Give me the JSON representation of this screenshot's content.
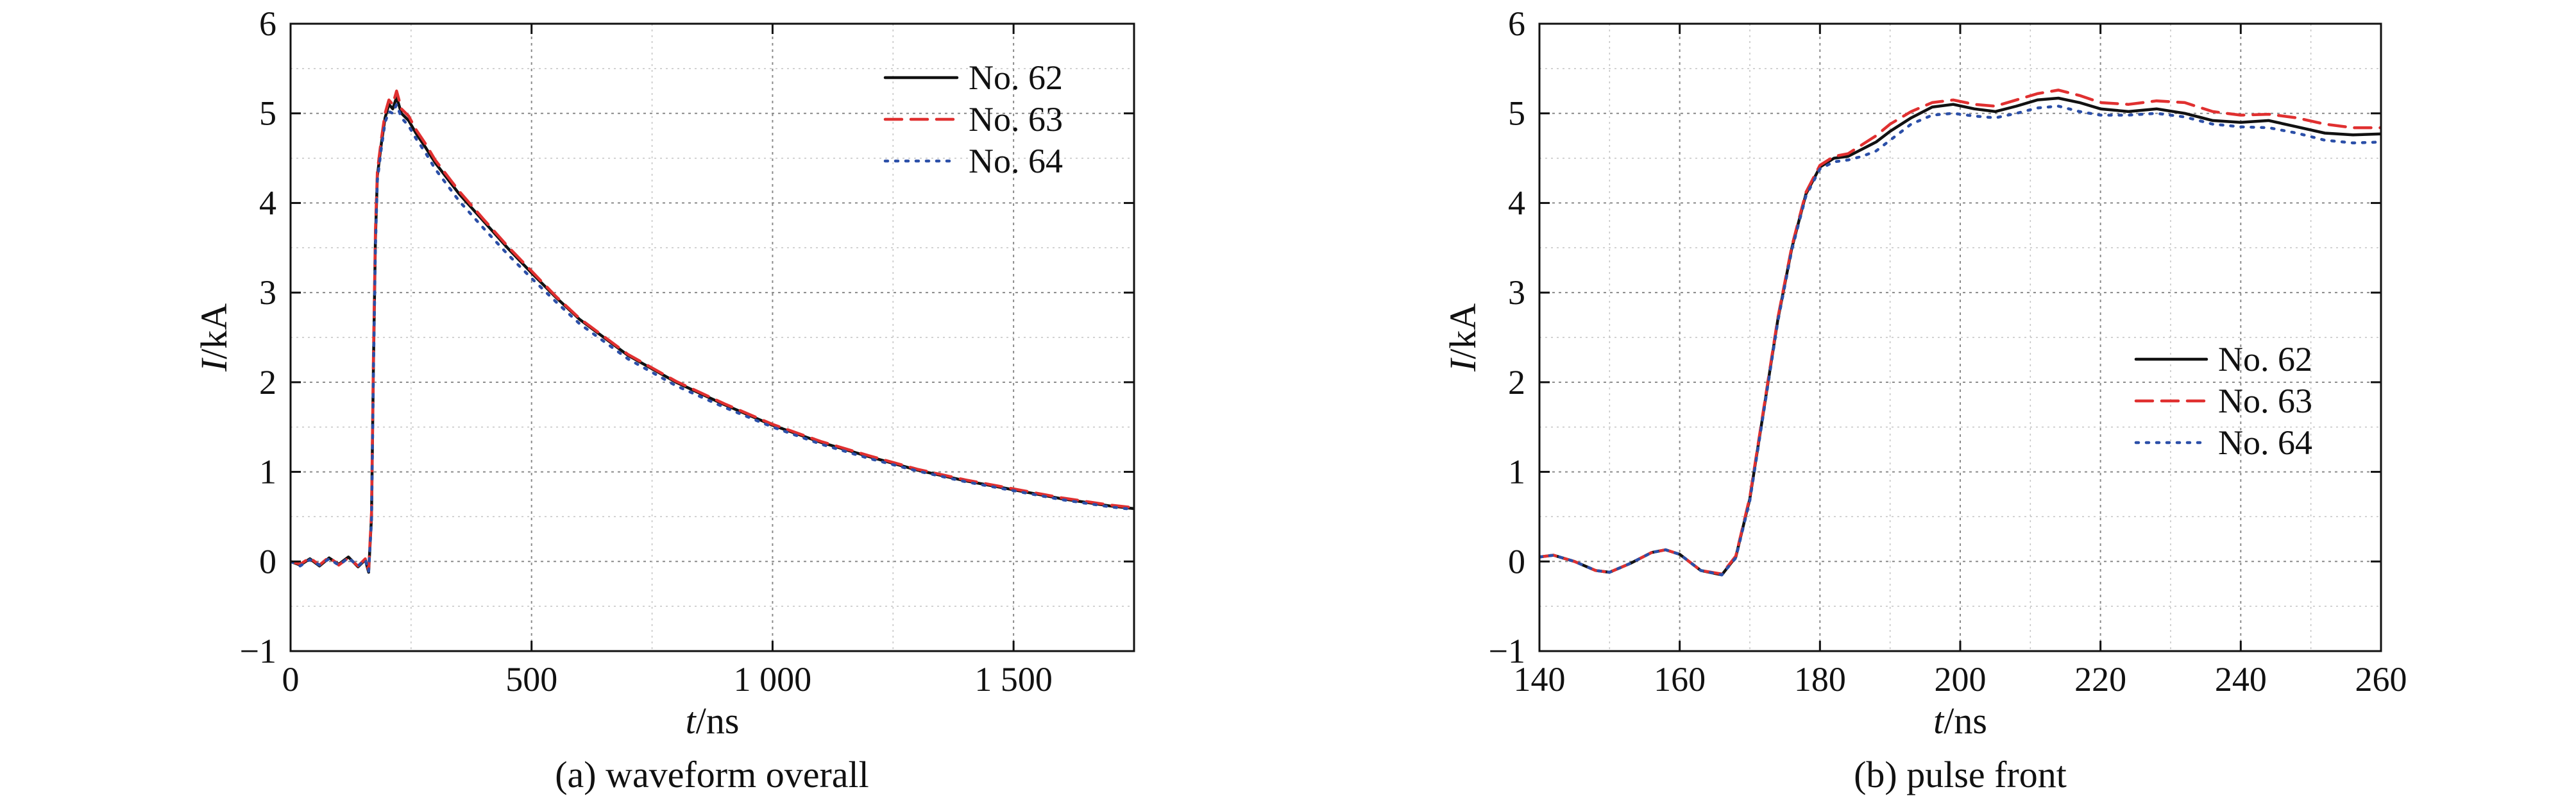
{
  "chart_data": [
    {
      "type": "line",
      "caption": "(a) waveform overall",
      "xlabel_italic": "t",
      "xlabel_unit": "/ns",
      "ylabel_italic": "I",
      "ylabel_unit": "/kA",
      "xlim": [
        0,
        1750
      ],
      "ylim": [
        -1,
        6
      ],
      "xticks": [
        0,
        500,
        1000,
        1500
      ],
      "xtick_labels": [
        "0",
        "500",
        "1 000",
        "1 500"
      ],
      "yticks": [
        -1,
        0,
        1,
        2,
        3,
        4,
        5,
        6
      ],
      "ytick_labels": [
        "−1",
        "0",
        "1",
        "2",
        "3",
        "4",
        "5",
        "6"
      ],
      "grid": true,
      "legend_position": "top-right",
      "series": [
        {
          "name": "No. 62",
          "color": "#111111",
          "style": "solid",
          "x": [
            0,
            20,
            40,
            60,
            80,
            100,
            120,
            140,
            155,
            162,
            168,
            172,
            176,
            180,
            188,
            196,
            204,
            212,
            220,
            230,
            245,
            260,
            280,
            300,
            350,
            400,
            450,
            500,
            550,
            600,
            700,
            800,
            900,
            1000,
            1100,
            1200,
            1300,
            1400,
            1500,
            1600,
            1700,
            1750
          ],
          "y": [
            0,
            -0.04,
            0.03,
            -0.05,
            0.04,
            -0.03,
            0.05,
            -0.06,
            0.02,
            -0.12,
            0.5,
            2.2,
            3.6,
            4.3,
            4.65,
            4.95,
            5.1,
            5.05,
            5.18,
            5.0,
            4.92,
            4.78,
            4.62,
            4.45,
            4.1,
            3.8,
            3.5,
            3.22,
            2.95,
            2.7,
            2.3,
            2.0,
            1.75,
            1.52,
            1.33,
            1.17,
            1.02,
            0.9,
            0.8,
            0.7,
            0.62,
            0.59
          ]
        },
        {
          "name": "No. 63",
          "color": "#e03030",
          "style": "dashed",
          "x": [
            0,
            20,
            40,
            60,
            80,
            100,
            120,
            140,
            155,
            162,
            168,
            172,
            176,
            180,
            188,
            196,
            204,
            212,
            220,
            230,
            245,
            260,
            280,
            300,
            350,
            400,
            450,
            500,
            550,
            600,
            700,
            800,
            900,
            1000,
            1100,
            1200,
            1300,
            1400,
            1500,
            1600,
            1700,
            1750
          ],
          "y": [
            0,
            -0.03,
            0.04,
            -0.04,
            0.05,
            -0.04,
            0.04,
            -0.05,
            0.03,
            -0.1,
            0.55,
            2.3,
            3.7,
            4.35,
            4.7,
            5.0,
            5.15,
            5.1,
            5.25,
            5.05,
            4.97,
            4.82,
            4.66,
            4.48,
            4.13,
            3.82,
            3.52,
            3.24,
            2.96,
            2.71,
            2.31,
            2.01,
            1.76,
            1.53,
            1.34,
            1.18,
            1.03,
            0.91,
            0.81,
            0.71,
            0.63,
            0.6
          ]
        },
        {
          "name": "No. 64",
          "color": "#2b4fa8",
          "style": "dotted",
          "x": [
            0,
            20,
            40,
            60,
            80,
            100,
            120,
            140,
            155,
            162,
            168,
            172,
            176,
            180,
            188,
            196,
            204,
            212,
            220,
            230,
            245,
            260,
            280,
            300,
            350,
            400,
            450,
            500,
            550,
            600,
            700,
            800,
            900,
            1000,
            1100,
            1200,
            1300,
            1400,
            1500,
            1600,
            1700,
            1750
          ],
          "y": [
            0,
            -0.05,
            0.02,
            -0.04,
            0.03,
            -0.04,
            0.04,
            -0.05,
            0.02,
            -0.11,
            0.45,
            2.1,
            3.5,
            4.25,
            4.6,
            4.9,
            5.02,
            5.0,
            5.1,
            4.95,
            4.86,
            4.72,
            4.56,
            4.38,
            4.02,
            3.72,
            3.43,
            3.16,
            2.9,
            2.65,
            2.26,
            1.96,
            1.72,
            1.5,
            1.31,
            1.15,
            1.01,
            0.89,
            0.79,
            0.69,
            0.61,
            0.58
          ]
        }
      ]
    },
    {
      "type": "line",
      "caption": "(b) pulse front",
      "xlabel_italic": "t",
      "xlabel_unit": "/ns",
      "ylabel_italic": "I",
      "ylabel_unit": "/kA",
      "xlim": [
        140,
        260
      ],
      "ylim": [
        -1,
        6
      ],
      "xticks": [
        140,
        160,
        180,
        200,
        220,
        240,
        260
      ],
      "xtick_labels": [
        "140",
        "160",
        "180",
        "200",
        "220",
        "240",
        "260"
      ],
      "yticks": [
        -1,
        0,
        1,
        2,
        3,
        4,
        5,
        6
      ],
      "ytick_labels": [
        "−1",
        "0",
        "1",
        "2",
        "3",
        "4",
        "5",
        "6"
      ],
      "grid": true,
      "legend_position": "center-right",
      "series": [
        {
          "name": "No. 62",
          "color": "#111111",
          "style": "solid",
          "x": [
            140,
            142,
            145,
            148,
            150,
            153,
            156,
            158,
            160,
            163,
            166,
            168,
            170,
            172,
            174,
            176,
            178,
            180,
            182,
            184,
            186,
            188,
            190,
            193,
            196,
            199,
            202,
            205,
            208,
            211,
            214,
            217,
            220,
            224,
            228,
            232,
            236,
            240,
            244,
            248,
            252,
            256,
            260
          ],
          "y": [
            0.05,
            0.07,
            0.0,
            -0.1,
            -0.12,
            -0.02,
            0.1,
            0.13,
            0.08,
            -0.1,
            -0.15,
            0.05,
            0.7,
            1.7,
            2.7,
            3.5,
            4.1,
            4.4,
            4.5,
            4.52,
            4.6,
            4.68,
            4.8,
            4.95,
            5.07,
            5.1,
            5.05,
            5.02,
            5.08,
            5.15,
            5.17,
            5.12,
            5.05,
            5.02,
            5.05,
            5.0,
            4.92,
            4.9,
            4.92,
            4.85,
            4.78,
            4.76,
            4.77
          ]
        },
        {
          "name": "No. 63",
          "color": "#e03030",
          "style": "dashed",
          "x": [
            140,
            142,
            145,
            148,
            150,
            153,
            156,
            158,
            160,
            163,
            166,
            168,
            170,
            172,
            174,
            176,
            178,
            180,
            182,
            184,
            186,
            188,
            190,
            193,
            196,
            199,
            202,
            205,
            208,
            211,
            214,
            217,
            220,
            224,
            228,
            232,
            236,
            240,
            244,
            248,
            252,
            256,
            260
          ],
          "y": [
            0.05,
            0.07,
            0.0,
            -0.1,
            -0.12,
            -0.02,
            0.1,
            0.13,
            0.08,
            -0.1,
            -0.14,
            0.06,
            0.72,
            1.72,
            2.72,
            3.52,
            4.12,
            4.42,
            4.52,
            4.55,
            4.65,
            4.75,
            4.88,
            5.02,
            5.12,
            5.15,
            5.1,
            5.08,
            5.15,
            5.22,
            5.26,
            5.2,
            5.12,
            5.1,
            5.14,
            5.12,
            5.02,
            4.98,
            4.99,
            4.95,
            4.88,
            4.84,
            4.84
          ]
        },
        {
          "name": "No. 64",
          "color": "#2b4fa8",
          "style": "dotted",
          "x": [
            140,
            142,
            145,
            148,
            150,
            153,
            156,
            158,
            160,
            163,
            166,
            168,
            170,
            172,
            174,
            176,
            178,
            180,
            182,
            184,
            186,
            188,
            190,
            193,
            196,
            199,
            202,
            205,
            208,
            211,
            214,
            217,
            220,
            224,
            228,
            232,
            236,
            240,
            244,
            248,
            252,
            256,
            260
          ],
          "y": [
            0.05,
            0.07,
            0.0,
            -0.1,
            -0.12,
            -0.02,
            0.1,
            0.13,
            0.08,
            -0.1,
            -0.15,
            0.04,
            0.68,
            1.68,
            2.68,
            3.48,
            4.08,
            4.38,
            4.46,
            4.48,
            4.52,
            4.58,
            4.7,
            4.88,
            4.98,
            5.0,
            4.97,
            4.95,
            5.0,
            5.06,
            5.08,
            5.02,
            4.98,
            4.98,
            5.0,
            4.96,
            4.88,
            4.85,
            4.84,
            4.78,
            4.7,
            4.67,
            4.68
          ]
        }
      ]
    }
  ]
}
